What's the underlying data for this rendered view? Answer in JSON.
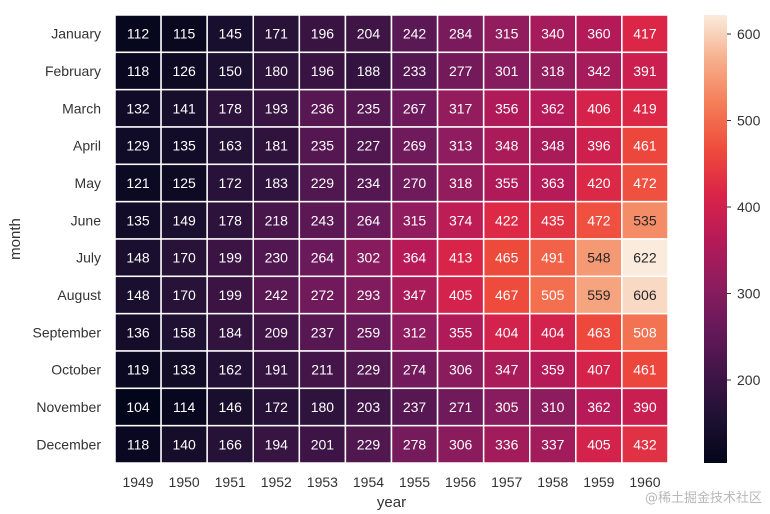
{
  "chart_data": {
    "type": "heatmap",
    "title": "",
    "xlabel": "year",
    "ylabel": "month",
    "x": [
      "1949",
      "1950",
      "1951",
      "1952",
      "1953",
      "1954",
      "1955",
      "1956",
      "1957",
      "1958",
      "1959",
      "1960"
    ],
    "y": [
      "January",
      "February",
      "March",
      "April",
      "May",
      "June",
      "July",
      "August",
      "September",
      "October",
      "November",
      "December"
    ],
    "values": [
      [
        112,
        115,
        145,
        171,
        196,
        204,
        242,
        284,
        315,
        340,
        360,
        417
      ],
      [
        118,
        126,
        150,
        180,
        196,
        188,
        233,
        277,
        301,
        318,
        342,
        391
      ],
      [
        132,
        141,
        178,
        193,
        236,
        235,
        267,
        317,
        356,
        362,
        406,
        419
      ],
      [
        129,
        135,
        163,
        181,
        235,
        227,
        269,
        313,
        348,
        348,
        396,
        461
      ],
      [
        121,
        125,
        172,
        183,
        229,
        234,
        270,
        318,
        355,
        363,
        420,
        472
      ],
      [
        135,
        149,
        178,
        218,
        243,
        264,
        315,
        374,
        422,
        435,
        472,
        535
      ],
      [
        148,
        170,
        199,
        230,
        264,
        302,
        364,
        413,
        465,
        491,
        548,
        622
      ],
      [
        148,
        170,
        199,
        242,
        272,
        293,
        347,
        405,
        467,
        505,
        559,
        606
      ],
      [
        136,
        158,
        184,
        209,
        237,
        259,
        312,
        355,
        404,
        404,
        463,
        508
      ],
      [
        119,
        133,
        162,
        191,
        211,
        229,
        274,
        306,
        347,
        359,
        407,
        461
      ],
      [
        104,
        114,
        146,
        172,
        180,
        203,
        237,
        271,
        305,
        310,
        362,
        390
      ],
      [
        118,
        140,
        166,
        194,
        201,
        229,
        278,
        306,
        336,
        337,
        405,
        432
      ]
    ],
    "colorbar": {
      "ticks": [
        200,
        300,
        400,
        500,
        600
      ],
      "min": 104,
      "max": 622,
      "colormap": "rocket"
    },
    "annotations": true,
    "grid": false
  },
  "watermark": "@稀土掘金技术社区"
}
